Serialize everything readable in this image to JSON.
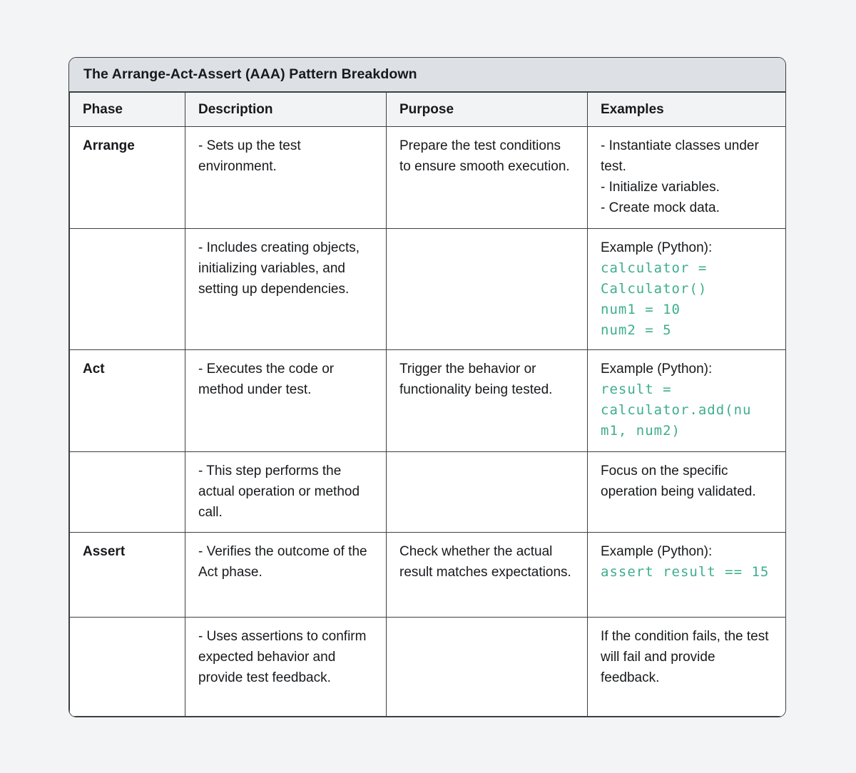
{
  "title": "The Arrange-Act-Assert (AAA) Pattern Breakdown",
  "columns": {
    "phase": "Phase",
    "description": "Description",
    "purpose": "Purpose",
    "examples": "Examples"
  },
  "colors": {
    "code_green": "#3eae8e",
    "title_bar_bg": "#dde1e5",
    "header_bg": "#f1f3f4",
    "border": "#3c4043",
    "page_bg": "#f2f4f5"
  },
  "rows": [
    {
      "phase": "Arrange",
      "description": "- Sets up the test environment.",
      "purpose": "Prepare the test conditions to ensure smooth execution.",
      "example_text": "- Instantiate classes under test.\n- Initialize variables.\n- Create mock data.",
      "example_code": ""
    },
    {
      "phase": "",
      "description": "- Includes creating objects, initializing variables, and setting up dependencies.",
      "purpose": "",
      "example_text": "Example (Python):",
      "example_code": "calculator =\nCalculator()\nnum1 = 10\nnum2 = 5"
    },
    {
      "phase": "Act",
      "description": "- Executes the code or method under test.",
      "purpose": "Trigger the behavior or functionality being tested.",
      "example_text": "Example (Python):",
      "example_code": "result =\ncalculator.add(nu\nm1, num2)"
    },
    {
      "phase": "",
      "description": "- This step performs the actual operation or method call.",
      "purpose": "",
      "example_text": "Focus on the specific operation being validated.",
      "example_code": ""
    },
    {
      "phase": "Assert",
      "description": "- Verifies the outcome of the Act phase.",
      "purpose": "Check whether the actual result matches expectations.",
      "example_text": "Example (Python):",
      "example_code": "assert result == 15"
    },
    {
      "phase": "",
      "description": "- Uses assertions to confirm expected behavior and provide test feedback.",
      "purpose": "",
      "example_text": "If the condition fails, the test will fail and provide feedback.",
      "example_code": ""
    }
  ]
}
